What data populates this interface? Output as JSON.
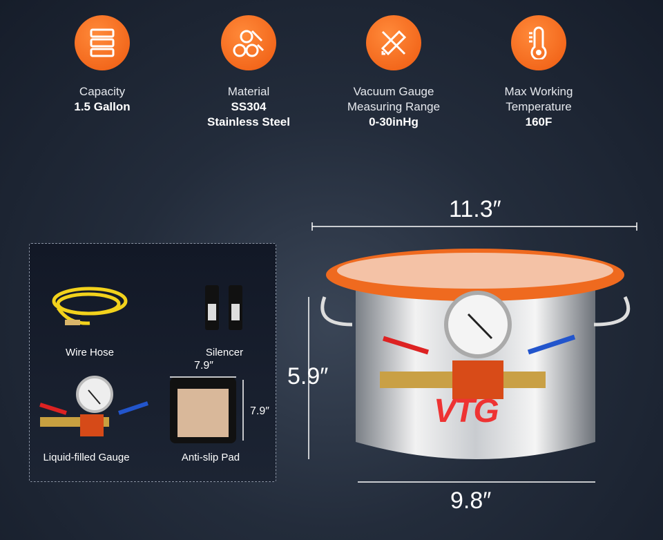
{
  "features": [
    {
      "icon": "layers-icon",
      "label": "Capacity",
      "value": "1.5 Gallon"
    },
    {
      "icon": "material-rolls-icon",
      "label": "Material",
      "value": "SS304",
      "value2": "Stainless Steel"
    },
    {
      "icon": "ruler-pencil-icon",
      "label": "Vacuum Gauge",
      "label2": "Measuring Range",
      "value": "0-30inHg"
    },
    {
      "icon": "thermometer-icon",
      "label": "Max Working",
      "label2": "Temperature",
      "value": "160F"
    }
  ],
  "accessories": [
    {
      "label": "Wire Hose"
    },
    {
      "label": "Silencer"
    },
    {
      "label": "Liquid-filled Gauge"
    },
    {
      "label": "Anti-slip Pad",
      "width": "7.9″",
      "height": "7.9″"
    }
  ],
  "dimensions": {
    "lid_width": "11.3″",
    "height": "5.9″",
    "base_width": "9.8″"
  },
  "brand": {
    "logo": "VTG"
  },
  "colors": {
    "accent": "#f26a1b",
    "background": "#1f2836"
  }
}
